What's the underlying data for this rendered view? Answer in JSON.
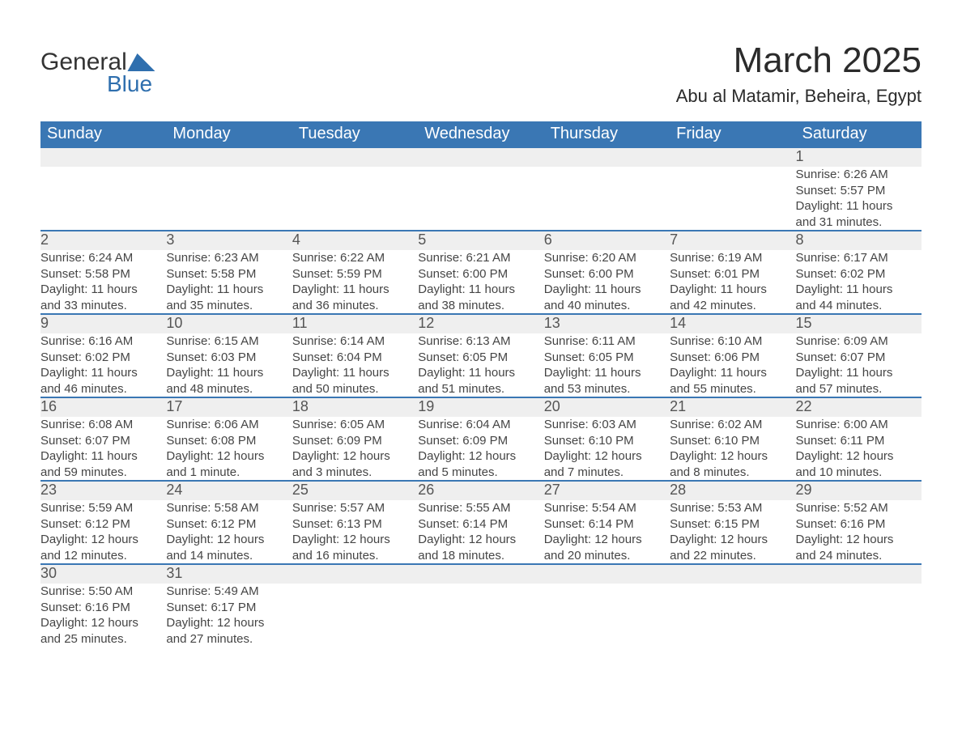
{
  "logo": {
    "text_general": "General",
    "text_blue": "Blue"
  },
  "title": "March 2025",
  "subtitle": "Abu al Matamir, Beheira, Egypt",
  "colors": {
    "header_bg": "#3a77b4",
    "header_text": "#ffffff",
    "daynum_bg": "#efefef",
    "row_border": "#3a77b4",
    "body_text": "#454545",
    "title_text": "#2b2b2b",
    "logo_blue": "#2f6fae"
  },
  "fontsizes": {
    "title": 44,
    "subtitle": 22,
    "weekday": 20,
    "daynum": 18,
    "cell": 15
  },
  "weekdays": [
    "Sunday",
    "Monday",
    "Tuesday",
    "Wednesday",
    "Thursday",
    "Friday",
    "Saturday"
  ],
  "weeks": [
    [
      null,
      null,
      null,
      null,
      null,
      null,
      {
        "day": "1",
        "sunrise": "Sunrise: 6:26 AM",
        "sunset": "Sunset: 5:57 PM",
        "dl1": "Daylight: 11 hours",
        "dl2": "and 31 minutes."
      }
    ],
    [
      {
        "day": "2",
        "sunrise": "Sunrise: 6:24 AM",
        "sunset": "Sunset: 5:58 PM",
        "dl1": "Daylight: 11 hours",
        "dl2": "and 33 minutes."
      },
      {
        "day": "3",
        "sunrise": "Sunrise: 6:23 AM",
        "sunset": "Sunset: 5:58 PM",
        "dl1": "Daylight: 11 hours",
        "dl2": "and 35 minutes."
      },
      {
        "day": "4",
        "sunrise": "Sunrise: 6:22 AM",
        "sunset": "Sunset: 5:59 PM",
        "dl1": "Daylight: 11 hours",
        "dl2": "and 36 minutes."
      },
      {
        "day": "5",
        "sunrise": "Sunrise: 6:21 AM",
        "sunset": "Sunset: 6:00 PM",
        "dl1": "Daylight: 11 hours",
        "dl2": "and 38 minutes."
      },
      {
        "day": "6",
        "sunrise": "Sunrise: 6:20 AM",
        "sunset": "Sunset: 6:00 PM",
        "dl1": "Daylight: 11 hours",
        "dl2": "and 40 minutes."
      },
      {
        "day": "7",
        "sunrise": "Sunrise: 6:19 AM",
        "sunset": "Sunset: 6:01 PM",
        "dl1": "Daylight: 11 hours",
        "dl2": "and 42 minutes."
      },
      {
        "day": "8",
        "sunrise": "Sunrise: 6:17 AM",
        "sunset": "Sunset: 6:02 PM",
        "dl1": "Daylight: 11 hours",
        "dl2": "and 44 minutes."
      }
    ],
    [
      {
        "day": "9",
        "sunrise": "Sunrise: 6:16 AM",
        "sunset": "Sunset: 6:02 PM",
        "dl1": "Daylight: 11 hours",
        "dl2": "and 46 minutes."
      },
      {
        "day": "10",
        "sunrise": "Sunrise: 6:15 AM",
        "sunset": "Sunset: 6:03 PM",
        "dl1": "Daylight: 11 hours",
        "dl2": "and 48 minutes."
      },
      {
        "day": "11",
        "sunrise": "Sunrise: 6:14 AM",
        "sunset": "Sunset: 6:04 PM",
        "dl1": "Daylight: 11 hours",
        "dl2": "and 50 minutes."
      },
      {
        "day": "12",
        "sunrise": "Sunrise: 6:13 AM",
        "sunset": "Sunset: 6:05 PM",
        "dl1": "Daylight: 11 hours",
        "dl2": "and 51 minutes."
      },
      {
        "day": "13",
        "sunrise": "Sunrise: 6:11 AM",
        "sunset": "Sunset: 6:05 PM",
        "dl1": "Daylight: 11 hours",
        "dl2": "and 53 minutes."
      },
      {
        "day": "14",
        "sunrise": "Sunrise: 6:10 AM",
        "sunset": "Sunset: 6:06 PM",
        "dl1": "Daylight: 11 hours",
        "dl2": "and 55 minutes."
      },
      {
        "day": "15",
        "sunrise": "Sunrise: 6:09 AM",
        "sunset": "Sunset: 6:07 PM",
        "dl1": "Daylight: 11 hours",
        "dl2": "and 57 minutes."
      }
    ],
    [
      {
        "day": "16",
        "sunrise": "Sunrise: 6:08 AM",
        "sunset": "Sunset: 6:07 PM",
        "dl1": "Daylight: 11 hours",
        "dl2": "and 59 minutes."
      },
      {
        "day": "17",
        "sunrise": "Sunrise: 6:06 AM",
        "sunset": "Sunset: 6:08 PM",
        "dl1": "Daylight: 12 hours",
        "dl2": "and 1 minute."
      },
      {
        "day": "18",
        "sunrise": "Sunrise: 6:05 AM",
        "sunset": "Sunset: 6:09 PM",
        "dl1": "Daylight: 12 hours",
        "dl2": "and 3 minutes."
      },
      {
        "day": "19",
        "sunrise": "Sunrise: 6:04 AM",
        "sunset": "Sunset: 6:09 PM",
        "dl1": "Daylight: 12 hours",
        "dl2": "and 5 minutes."
      },
      {
        "day": "20",
        "sunrise": "Sunrise: 6:03 AM",
        "sunset": "Sunset: 6:10 PM",
        "dl1": "Daylight: 12 hours",
        "dl2": "and 7 minutes."
      },
      {
        "day": "21",
        "sunrise": "Sunrise: 6:02 AM",
        "sunset": "Sunset: 6:10 PM",
        "dl1": "Daylight: 12 hours",
        "dl2": "and 8 minutes."
      },
      {
        "day": "22",
        "sunrise": "Sunrise: 6:00 AM",
        "sunset": "Sunset: 6:11 PM",
        "dl1": "Daylight: 12 hours",
        "dl2": "and 10 minutes."
      }
    ],
    [
      {
        "day": "23",
        "sunrise": "Sunrise: 5:59 AM",
        "sunset": "Sunset: 6:12 PM",
        "dl1": "Daylight: 12 hours",
        "dl2": "and 12 minutes."
      },
      {
        "day": "24",
        "sunrise": "Sunrise: 5:58 AM",
        "sunset": "Sunset: 6:12 PM",
        "dl1": "Daylight: 12 hours",
        "dl2": "and 14 minutes."
      },
      {
        "day": "25",
        "sunrise": "Sunrise: 5:57 AM",
        "sunset": "Sunset: 6:13 PM",
        "dl1": "Daylight: 12 hours",
        "dl2": "and 16 minutes."
      },
      {
        "day": "26",
        "sunrise": "Sunrise: 5:55 AM",
        "sunset": "Sunset: 6:14 PM",
        "dl1": "Daylight: 12 hours",
        "dl2": "and 18 minutes."
      },
      {
        "day": "27",
        "sunrise": "Sunrise: 5:54 AM",
        "sunset": "Sunset: 6:14 PM",
        "dl1": "Daylight: 12 hours",
        "dl2": "and 20 minutes."
      },
      {
        "day": "28",
        "sunrise": "Sunrise: 5:53 AM",
        "sunset": "Sunset: 6:15 PM",
        "dl1": "Daylight: 12 hours",
        "dl2": "and 22 minutes."
      },
      {
        "day": "29",
        "sunrise": "Sunrise: 5:52 AM",
        "sunset": "Sunset: 6:16 PM",
        "dl1": "Daylight: 12 hours",
        "dl2": "and 24 minutes."
      }
    ],
    [
      {
        "day": "30",
        "sunrise": "Sunrise: 5:50 AM",
        "sunset": "Sunset: 6:16 PM",
        "dl1": "Daylight: 12 hours",
        "dl2": "and 25 minutes."
      },
      {
        "day": "31",
        "sunrise": "Sunrise: 5:49 AM",
        "sunset": "Sunset: 6:17 PM",
        "dl1": "Daylight: 12 hours",
        "dl2": "and 27 minutes."
      },
      null,
      null,
      null,
      null,
      null
    ]
  ]
}
